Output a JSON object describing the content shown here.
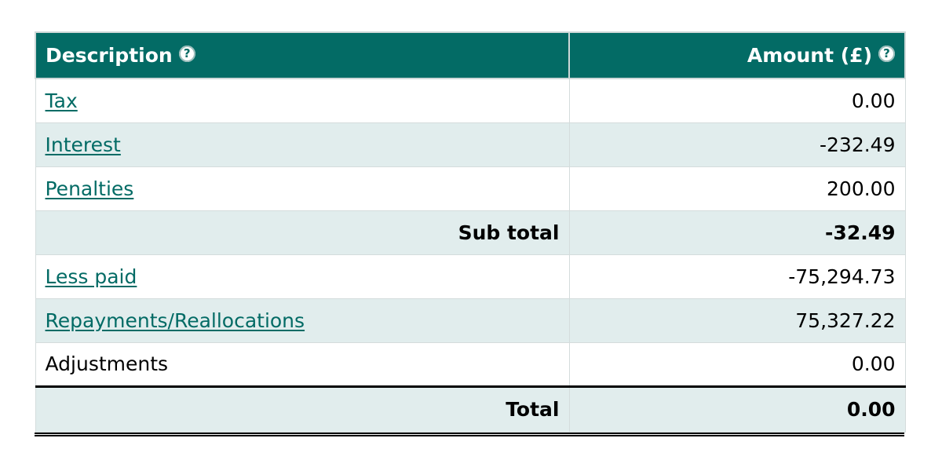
{
  "table": {
    "headers": {
      "description": "Description",
      "amount": "Amount (£)",
      "help_glyph": "?"
    },
    "rows": [
      {
        "label": "Tax",
        "amount": "0.00"
      },
      {
        "label": "Interest",
        "amount": "-232.49"
      },
      {
        "label": "Penalties",
        "amount": "200.00"
      },
      {
        "label": "Sub total",
        "amount": "-32.49"
      },
      {
        "label": "Less paid",
        "amount": "-75,294.73"
      },
      {
        "label": "Repayments/Reallocations",
        "amount": "75,327.22"
      },
      {
        "label": "Adjustments",
        "amount": "0.00"
      },
      {
        "label": "Total",
        "amount": "0.00"
      }
    ]
  },
  "colors": {
    "header_bg": "#036b65",
    "link": "#036b65",
    "zebra": "#e1eded"
  },
  "icons": {
    "help": "help-icon"
  }
}
